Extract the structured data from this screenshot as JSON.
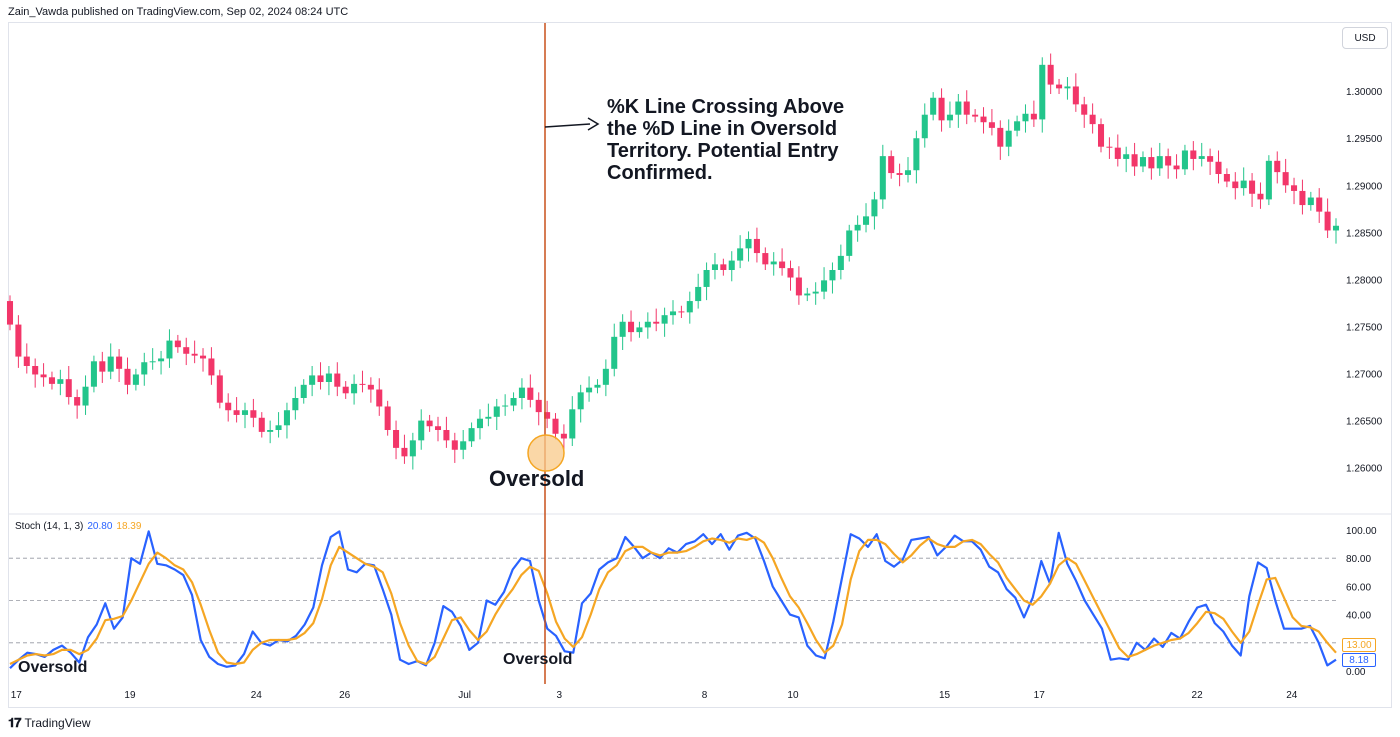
{
  "header": {
    "text": "Zain_Vawda published on TradingView.com, Sep 02, 2024 08:24 UTC"
  },
  "currency_button": "USD",
  "footer": {
    "brand": "TradingView"
  },
  "annotation": {
    "text": "%K Line Crossing Above the %D Line in Oversold Territory. Potential Entry Confirmed."
  },
  "labels": {
    "oversold_price": "Oversold",
    "oversold_ind_left": "Oversold",
    "oversold_ind_mid": "Oversold"
  },
  "indicator_legend": {
    "name": "Stoch (14, 1, 3)",
    "k_value": "20.80",
    "d_value": "18.39"
  },
  "price_tags": {
    "d": "13.00",
    "k": "8.18"
  },
  "colors": {
    "up": "#26a69a",
    "up_candle": "#22c58b",
    "down": "#f23669",
    "k_line": "#2962ff",
    "d_line": "#f5a623",
    "marker": "#c8511b"
  },
  "chart_data": [
    {
      "type": "candlestick",
      "title": "",
      "ylim": [
        1.2555,
        1.3065
      ],
      "y_ticks": [
        "1.30000",
        "1.29500",
        "1.29000",
        "1.28500",
        "1.28000",
        "1.27500",
        "1.27000",
        "1.26500",
        "1.26000"
      ],
      "x_ticks": [
        "17",
        "19",
        "24",
        "26",
        "Jul",
        "3",
        "8",
        "10",
        "15",
        "17",
        "22",
        "24"
      ],
      "close_series": [
        1.2752,
        1.2718,
        1.2708,
        1.2699,
        1.2696,
        1.2689,
        1.2694,
        1.2675,
        1.2666,
        1.2686,
        1.2713,
        1.2702,
        1.2718,
        1.2705,
        1.2688,
        1.2699,
        1.2712,
        1.2713,
        1.2716,
        1.2735,
        1.2728,
        1.2721,
        1.2719,
        1.2716,
        1.2698,
        1.2669,
        1.2661,
        1.2656,
        1.2661,
        1.2653,
        1.2638,
        1.264,
        1.2645,
        1.2661,
        1.2674,
        1.2688,
        1.2698,
        1.2691,
        1.27,
        1.2686,
        1.2679,
        1.2689,
        1.2688,
        1.2683,
        1.2665,
        1.264,
        1.2621,
        1.2612,
        1.2629,
        1.265,
        1.2644,
        1.264,
        1.2629,
        1.2619,
        1.2628,
        1.2642,
        1.2652,
        1.2654,
        1.2665,
        1.2666,
        1.2674,
        1.2685,
        1.2672,
        1.2659,
        1.2652,
        1.2636,
        1.2631,
        1.2662,
        1.268,
        1.2685,
        1.2688,
        1.2705,
        1.2739,
        1.2755,
        1.2744,
        1.2749,
        1.2755,
        1.2753,
        1.2762,
        1.2766,
        1.2765,
        1.2777,
        1.2792,
        1.281,
        1.2816,
        1.281,
        1.282,
        1.2833,
        1.2843,
        1.2828,
        1.2816,
        1.2819,
        1.2812,
        1.2802,
        1.2783,
        1.2785,
        1.2787,
        1.2799,
        1.281,
        1.2825,
        1.2852,
        1.2858,
        1.2867,
        1.2885,
        1.2931,
        1.2913,
        1.2911,
        1.2916,
        1.295,
        1.2975,
        1.2993,
        1.2969,
        1.2975,
        1.2989,
        1.2975,
        1.2973,
        1.2967,
        1.2961,
        1.2941,
        1.2958,
        1.2968,
        1.2976,
        1.297,
        1.3028,
        1.3007,
        1.3003,
        1.3005,
        1.2986,
        1.2975,
        1.2965,
        1.2941,
        1.294,
        1.2928,
        1.2933,
        1.292,
        1.293,
        1.2918,
        1.2931,
        1.2921,
        1.2917,
        1.2937,
        1.2928,
        1.2931,
        1.2925,
        1.2912,
        1.2904,
        1.2897,
        1.2905,
        1.2891,
        1.2885,
        1.2926,
        1.2914,
        1.29,
        1.2894,
        1.2879,
        1.2887,
        1.2872,
        1.2852,
        1.2857
      ]
    },
    {
      "type": "line",
      "title": "Stoch (14, 1, 3)",
      "ylim": [
        0,
        100
      ],
      "y_ticks": [
        "100.00",
        "80.00",
        "60.00",
        "40.00",
        "20.00",
        "0.00"
      ],
      "levels": [
        80,
        50,
        20
      ],
      "series": [
        {
          "name": "%K",
          "values": [
            2,
            8,
            13,
            12,
            10,
            15,
            18,
            13,
            6,
            24,
            33,
            48,
            30,
            38,
            80,
            76,
            99,
            76,
            75,
            72,
            68,
            54,
            22,
            10,
            5,
            3,
            4,
            12,
            28,
            20,
            18,
            22,
            21,
            25,
            33,
            45,
            75,
            95,
            99,
            72,
            70,
            76,
            75,
            58,
            40,
            8,
            5,
            7,
            4,
            20,
            46,
            42,
            32,
            15,
            20,
            50,
            47,
            56,
            72,
            80,
            78,
            50,
            30,
            25,
            14,
            13,
            48,
            55,
            72,
            77,
            80,
            95,
            88,
            80,
            84,
            80,
            87,
            84,
            90,
            92,
            97,
            90,
            97,
            86,
            96,
            98,
            94,
            78,
            60,
            50,
            40,
            38,
            18,
            11,
            9,
            35,
            66,
            97,
            94,
            88,
            97,
            78,
            74,
            79,
            93,
            94,
            95,
            82,
            88,
            96,
            92,
            92,
            86,
            74,
            70,
            58,
            52,
            38,
            52,
            78,
            62,
            98,
            76,
            64,
            50,
            40,
            30,
            8,
            9,
            8,
            20,
            15,
            23,
            17,
            27,
            23,
            35,
            45,
            47,
            34,
            28,
            18,
            11,
            53,
            77,
            73,
            50,
            30,
            30,
            30,
            32,
            20,
            4,
            8
          ]
        },
        {
          "name": "%D",
          "values": [
            5,
            8,
            11,
            12,
            11,
            12,
            15,
            15,
            12,
            15,
            23,
            36,
            37,
            39,
            50,
            63,
            76,
            84,
            80,
            75,
            72,
            63,
            47,
            29,
            13,
            6,
            5,
            6,
            15,
            20,
            22,
            22,
            22,
            23,
            27,
            34,
            51,
            75,
            88,
            84,
            80,
            76,
            74,
            70,
            55,
            34,
            18,
            7,
            5,
            10,
            23,
            36,
            38,
            29,
            22,
            28,
            40,
            50,
            58,
            68,
            74,
            71,
            55,
            35,
            23,
            17,
            24,
            40,
            58,
            70,
            75,
            85,
            88,
            88,
            84,
            82,
            84,
            84,
            85,
            88,
            92,
            94,
            93,
            91,
            94,
            93,
            95,
            91,
            80,
            66,
            53,
            45,
            34,
            22,
            13,
            18,
            33,
            65,
            85,
            93,
            93,
            90,
            83,
            77,
            82,
            89,
            94,
            90,
            88,
            88,
            92,
            93,
            90,
            83,
            77,
            66,
            58,
            50,
            47,
            53,
            62,
            75,
            80,
            76,
            64,
            52,
            40,
            28,
            16,
            10,
            12,
            15,
            18,
            20,
            22,
            23,
            27,
            34,
            42,
            41,
            37,
            28,
            20,
            28,
            47,
            65,
            66,
            52,
            38,
            32,
            31,
            28,
            20,
            13
          ]
        }
      ]
    }
  ]
}
